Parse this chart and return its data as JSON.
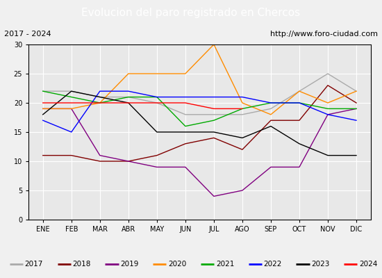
{
  "title": "Evolucion del paro registrado en Chercos",
  "subtitle_left": "2017 - 2024",
  "subtitle_right": "http://www.foro-ciudad.com",
  "months": [
    "ENE",
    "FEB",
    "MAR",
    "ABR",
    "MAY",
    "JUN",
    "JUL",
    "AGO",
    "SEP",
    "OCT",
    "NOV",
    "DIC"
  ],
  "series": {
    "2017": {
      "color": "#aaaaaa",
      "data": [
        22,
        22,
        21,
        21,
        20,
        18,
        18,
        18,
        19,
        22,
        25,
        22
      ]
    },
    "2018": {
      "color": "#800000",
      "data": [
        11,
        11,
        10,
        10,
        11,
        13,
        14,
        12,
        17,
        17,
        23,
        20
      ]
    },
    "2019": {
      "color": "#800080",
      "data": [
        19,
        19,
        11,
        10,
        9,
        9,
        4,
        5,
        9,
        9,
        18,
        19
      ]
    },
    "2020": {
      "color": "#ff8c00",
      "data": [
        19,
        19,
        20,
        25,
        25,
        25,
        30,
        20,
        18,
        22,
        20,
        22
      ]
    },
    "2021": {
      "color": "#00aa00",
      "data": [
        22,
        21,
        20,
        21,
        21,
        16,
        17,
        19,
        20,
        20,
        19,
        19
      ]
    },
    "2022": {
      "color": "#0000ff",
      "data": [
        17,
        15,
        22,
        22,
        21,
        21,
        21,
        21,
        20,
        20,
        18,
        17
      ]
    },
    "2023": {
      "color": "#000000",
      "data": [
        18,
        22,
        21,
        20,
        15,
        15,
        15,
        14,
        16,
        13,
        11,
        11
      ]
    },
    "2024": {
      "color": "#ff0000",
      "data": [
        20,
        20,
        20,
        20,
        20,
        20,
        19,
        19,
        null,
        null,
        null,
        null
      ]
    }
  },
  "ylim": [
    0,
    30
  ],
  "yticks": [
    0,
    5,
    10,
    15,
    20,
    25,
    30
  ],
  "title_bg": "#4472c4",
  "title_color": "#ffffff",
  "subtitle_bg": "#d4d0c8",
  "plot_bg": "#e8e8e8",
  "grid_color": "#ffffff",
  "title_fontsize": 11,
  "subtitle_fontsize": 8,
  "tick_fontsize": 7,
  "legend_fontsize": 7.5
}
